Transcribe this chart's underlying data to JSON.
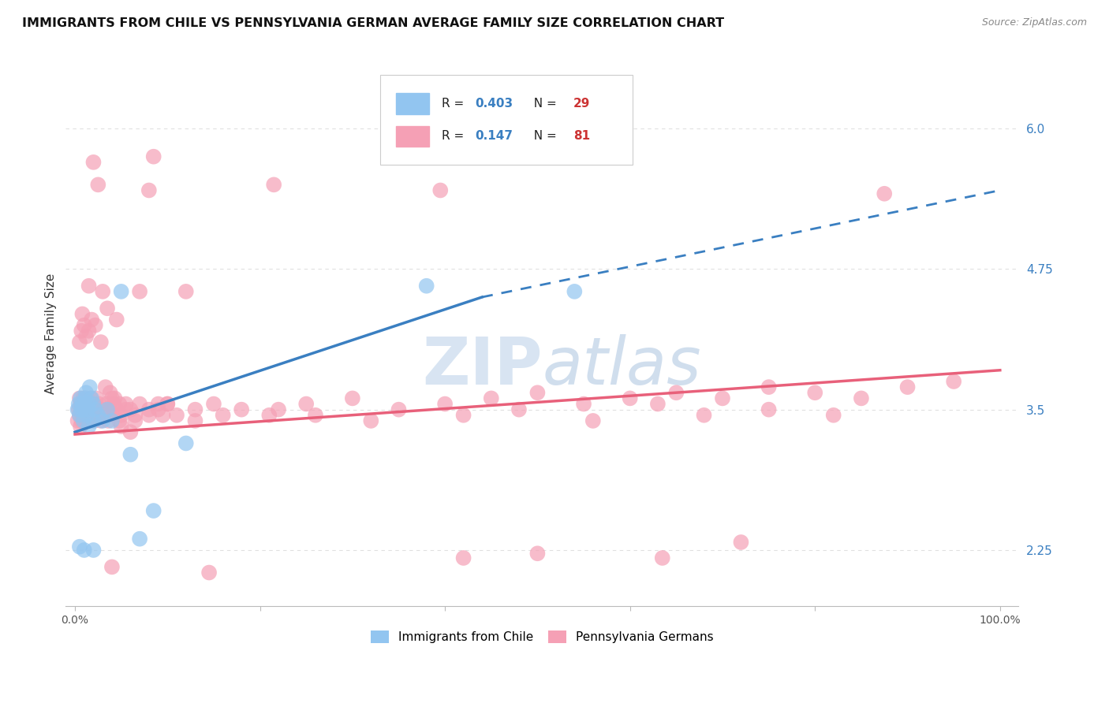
{
  "title": "IMMIGRANTS FROM CHILE VS PENNSYLVANIA GERMAN AVERAGE FAMILY SIZE CORRELATION CHART",
  "source": "Source: ZipAtlas.com",
  "ylabel": "Average Family Size",
  "right_yticks": [
    2.25,
    3.5,
    4.75,
    6.0
  ],
  "watermark": "ZIPatlas",
  "chile_R": 0.403,
  "chile_N": 29,
  "penn_R": 0.147,
  "penn_N": 81,
  "chile_color": "#92c5f0",
  "penn_color": "#f5a0b5",
  "chile_line_color": "#3a7fc1",
  "penn_line_color": "#e8607a",
  "chile_x": [
    0.003,
    0.004,
    0.005,
    0.006,
    0.007,
    0.008,
    0.009,
    0.01,
    0.011,
    0.012,
    0.013,
    0.014,
    0.015,
    0.016,
    0.018,
    0.02,
    0.022,
    0.025,
    0.03,
    0.035,
    0.04,
    0.05,
    0.06,
    0.07,
    0.085,
    0.12,
    0.38,
    0.54,
    0.02
  ],
  "chile_y": [
    3.5,
    3.55,
    3.45,
    3.6,
    3.5,
    3.55,
    3.4,
    3.5,
    3.6,
    3.65,
    3.45,
    3.5,
    3.55,
    3.7,
    3.6,
    3.55,
    3.5,
    3.45,
    3.4,
    3.5,
    3.4,
    4.55,
    3.1,
    2.35,
    2.6,
    3.2,
    4.6,
    4.55,
    2.25
  ],
  "penn_x": [
    0.003,
    0.004,
    0.005,
    0.005,
    0.006,
    0.006,
    0.007,
    0.007,
    0.008,
    0.008,
    0.009,
    0.01,
    0.01,
    0.011,
    0.012,
    0.012,
    0.013,
    0.014,
    0.015,
    0.016,
    0.017,
    0.018,
    0.019,
    0.02,
    0.021,
    0.022,
    0.023,
    0.025,
    0.026,
    0.028,
    0.03,
    0.032,
    0.034,
    0.036,
    0.038,
    0.04,
    0.042,
    0.045,
    0.048,
    0.05,
    0.055,
    0.06,
    0.065,
    0.07,
    0.08,
    0.09,
    0.1,
    0.11,
    0.13,
    0.15,
    0.18,
    0.21,
    0.25,
    0.3,
    0.35,
    0.4,
    0.45,
    0.5,
    0.55,
    0.6,
    0.65,
    0.7,
    0.75,
    0.8,
    0.85,
    0.9,
    0.95,
    0.015,
    0.02,
    0.025,
    0.03,
    0.035,
    0.04,
    0.045,
    0.05,
    0.06,
    0.07,
    0.08,
    0.09,
    0.1,
    0.12
  ],
  "penn_y": [
    3.4,
    3.5,
    3.45,
    3.6,
    3.55,
    3.35,
    3.5,
    3.4,
    3.45,
    3.55,
    3.6,
    3.5,
    3.45,
    3.55,
    3.6,
    3.4,
    3.5,
    3.45,
    3.55,
    3.4,
    3.6,
    3.5,
    3.45,
    3.55,
    3.4,
    3.5,
    3.6,
    3.45,
    3.55,
    3.4,
    3.5,
    3.45,
    3.55,
    3.4,
    3.5,
    3.45,
    3.55,
    3.5,
    3.4,
    3.45,
    3.55,
    3.5,
    3.4,
    3.55,
    3.45,
    3.5,
    3.55,
    3.45,
    3.5,
    3.55,
    3.5,
    3.45,
    3.55,
    3.6,
    3.5,
    3.55,
    3.6,
    3.65,
    3.55,
    3.6,
    3.65,
    3.6,
    3.7,
    3.65,
    3.6,
    3.7,
    3.75,
    4.6,
    5.7,
    5.5,
    4.55,
    4.4,
    3.6,
    4.3,
    3.35,
    3.3,
    4.55,
    5.45,
    3.55,
    3.55,
    4.55
  ],
  "xlim": [
    -0.01,
    1.02
  ],
  "ylim": [
    1.75,
    6.6
  ],
  "bg_color": "#ffffff",
  "grid_color": "#e0e0e0",
  "chile_line_x0": 0.0,
  "chile_line_y0": 3.3,
  "chile_line_x1": 0.44,
  "chile_line_y1": 4.5,
  "chile_line_dash_x1": 1.0,
  "chile_line_dash_y1": 5.45,
  "penn_line_x0": 0.0,
  "penn_line_y0": 3.28,
  "penn_line_x1": 1.0,
  "penn_line_y1": 3.85
}
